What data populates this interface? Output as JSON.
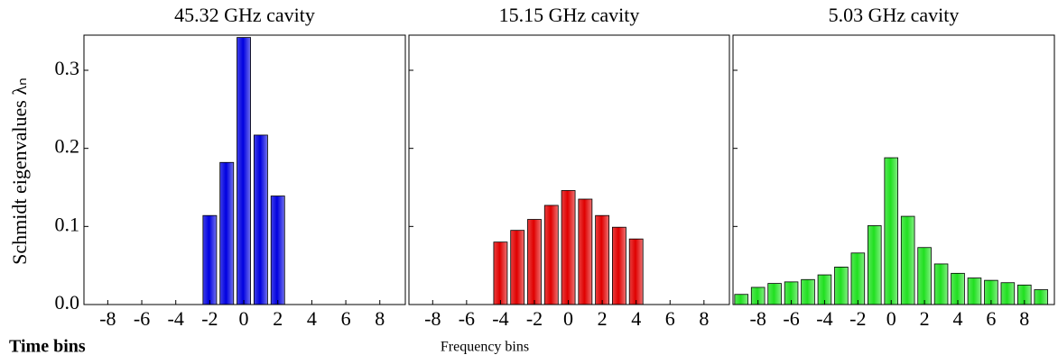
{
  "ylabel": "Schmidt eigenvalues λₙ",
  "xlabel": "Frequency bins",
  "annotation": "Time bins",
  "chart_data": [
    {
      "type": "bar",
      "title": "45.32 GHz cavity",
      "color": "#0000e0",
      "x": [
        -2,
        -1,
        0,
        1,
        2
      ],
      "values": [
        0.114,
        0.182,
        0.342,
        0.217,
        0.139
      ],
      "xlim": [
        -9.4,
        9.5
      ],
      "xticks": [
        -8,
        -6,
        -4,
        -2,
        0,
        2,
        4,
        6,
        8
      ],
      "ylim": [
        0,
        0.345
      ],
      "yticks": [
        {
          "value": 0,
          "label": "0.0"
        },
        0.1,
        0.2,
        0.3
      ]
    },
    {
      "type": "bar",
      "title": "15.15 GHz cavity",
      "color": "#e00000",
      "x": [
        -4,
        -3,
        -2,
        -1,
        0,
        1,
        2,
        3,
        4
      ],
      "values": [
        0.08,
        0.095,
        0.109,
        0.127,
        0.146,
        0.135,
        0.114,
        0.099,
        0.084
      ],
      "xlim": [
        -9.4,
        9.5
      ],
      "xticks": [
        -8,
        -6,
        -4,
        -2,
        0,
        2,
        4,
        6,
        8
      ],
      "ylim": [
        0,
        0.345
      ]
    },
    {
      "type": "bar",
      "title": "5.03 GHz cavity",
      "color": "#20e020",
      "x": [
        -9,
        -8,
        -7,
        -6,
        -5,
        -4,
        -3,
        -2,
        -1,
        0,
        1,
        2,
        3,
        4,
        5,
        6,
        7,
        8,
        9
      ],
      "values": [
        0.013,
        0.022,
        0.027,
        0.029,
        0.032,
        0.038,
        0.048,
        0.066,
        0.101,
        0.188,
        0.113,
        0.073,
        0.052,
        0.04,
        0.034,
        0.031,
        0.028,
        0.025,
        0.019
      ],
      "xlim": [
        -9.5,
        9.8
      ],
      "xticks": [
        -8,
        -6,
        -4,
        -2,
        0,
        2,
        4,
        6,
        8
      ],
      "ylim": [
        0,
        0.345
      ]
    }
  ]
}
